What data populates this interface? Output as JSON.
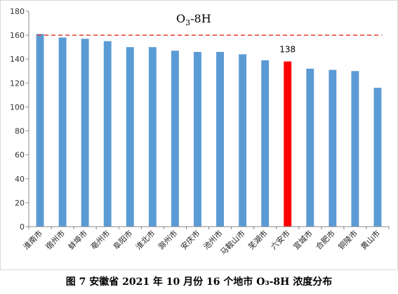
{
  "caption": "图 7  安徽省 2021 年 10 月份 16 个地市 O₃-8H 浓度分布",
  "chart_data": {
    "type": "bar",
    "title_main": "O",
    "title_sub": "3",
    "title_rest": "-8H",
    "categories": [
      "淮南市",
      "宿州市",
      "蚌埠市",
      "亳州市",
      "阜阳市",
      "淮北市",
      "滁州市",
      "安庆市",
      "池州市",
      "马鞍山市",
      "芜湖市",
      "六安市",
      "宣城市",
      "合肥市",
      "铜陵市",
      "黄山市"
    ],
    "values": [
      161,
      158,
      157,
      155,
      150,
      150,
      147,
      146,
      146,
      144,
      139,
      138,
      132,
      131,
      130,
      116
    ],
    "highlight_index": 11,
    "highlight_label": "138",
    "ylim": [
      0,
      180
    ],
    "yticks": [
      0,
      20,
      40,
      60,
      80,
      100,
      120,
      140,
      160,
      180
    ],
    "reference_line": 160,
    "grid": false,
    "colors": {
      "bar": "#5b9bd5",
      "highlight": "#ff0000",
      "reference": "#e03c31",
      "axis": "#888888"
    }
  }
}
